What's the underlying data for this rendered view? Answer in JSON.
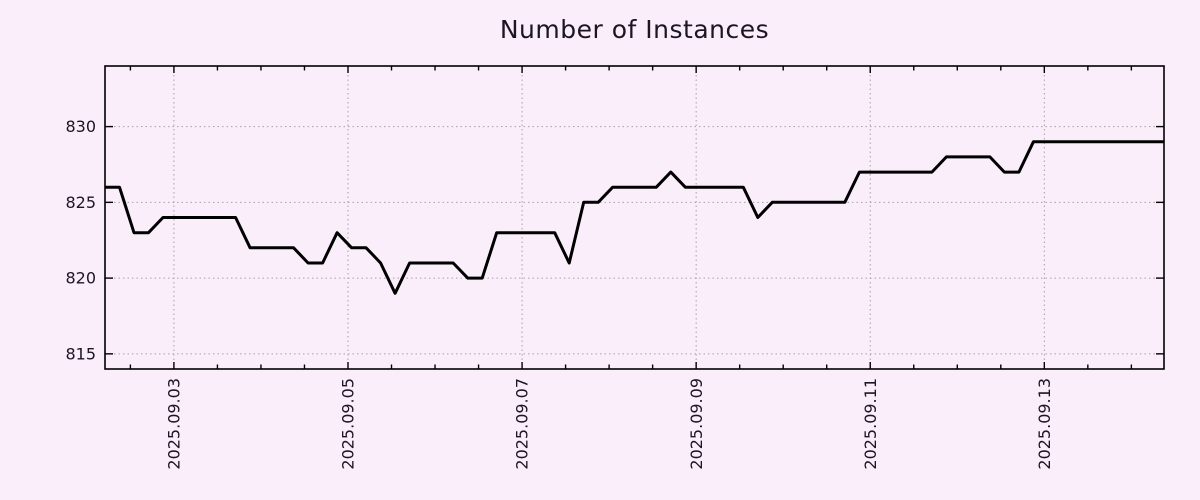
{
  "colors": {
    "background": "#faeefa",
    "line": "#000000",
    "grid": "#a3a3a3",
    "border": "#000000",
    "text": "#1b1622"
  },
  "chart_data": {
    "type": "line",
    "title": "Number of Instances",
    "xlabel": "",
    "ylabel": "",
    "grid": true,
    "legend": "none",
    "x_axis": {
      "epoch_day0": "2025.09.02 00:00",
      "xlim_days": [
        0.2083,
        12.375
      ],
      "major_tick_days": [
        1,
        3,
        5,
        7,
        9,
        11
      ],
      "tick_labels": [
        "2025.09.03",
        "2025.09.05",
        "2025.09.07",
        "2025.09.09",
        "2025.09.11",
        "2025.09.13"
      ],
      "minor_tick_step_days": 0.5,
      "label_rotation_deg": -90
    },
    "y_axis": {
      "ylim": [
        814,
        834
      ],
      "tick_values": [
        815,
        820,
        825,
        830
      ],
      "tick_labels": [
        "815",
        "820",
        "825",
        "830"
      ]
    },
    "series": [
      {
        "name": "Number of Instances",
        "color": "#000000",
        "x_start_days": 0.2083,
        "x_step_days": 0.1666667,
        "values": [
          826,
          826,
          823,
          823,
          824,
          824,
          824,
          824,
          824,
          824,
          822,
          822,
          822,
          822,
          821,
          821,
          823,
          822,
          822,
          821,
          819,
          821,
          821,
          821,
          821,
          820,
          820,
          823,
          823,
          823,
          823,
          823,
          821,
          825,
          825,
          826,
          826,
          826,
          826,
          827,
          826,
          826,
          826,
          826,
          826,
          824,
          825,
          825,
          825,
          825,
          825,
          825,
          827,
          827,
          827,
          827,
          827,
          827,
          828,
          828,
          828,
          828,
          827,
          827,
          829,
          829,
          829,
          829,
          829,
          829,
          829,
          829,
          829,
          829
        ]
      }
    ]
  }
}
